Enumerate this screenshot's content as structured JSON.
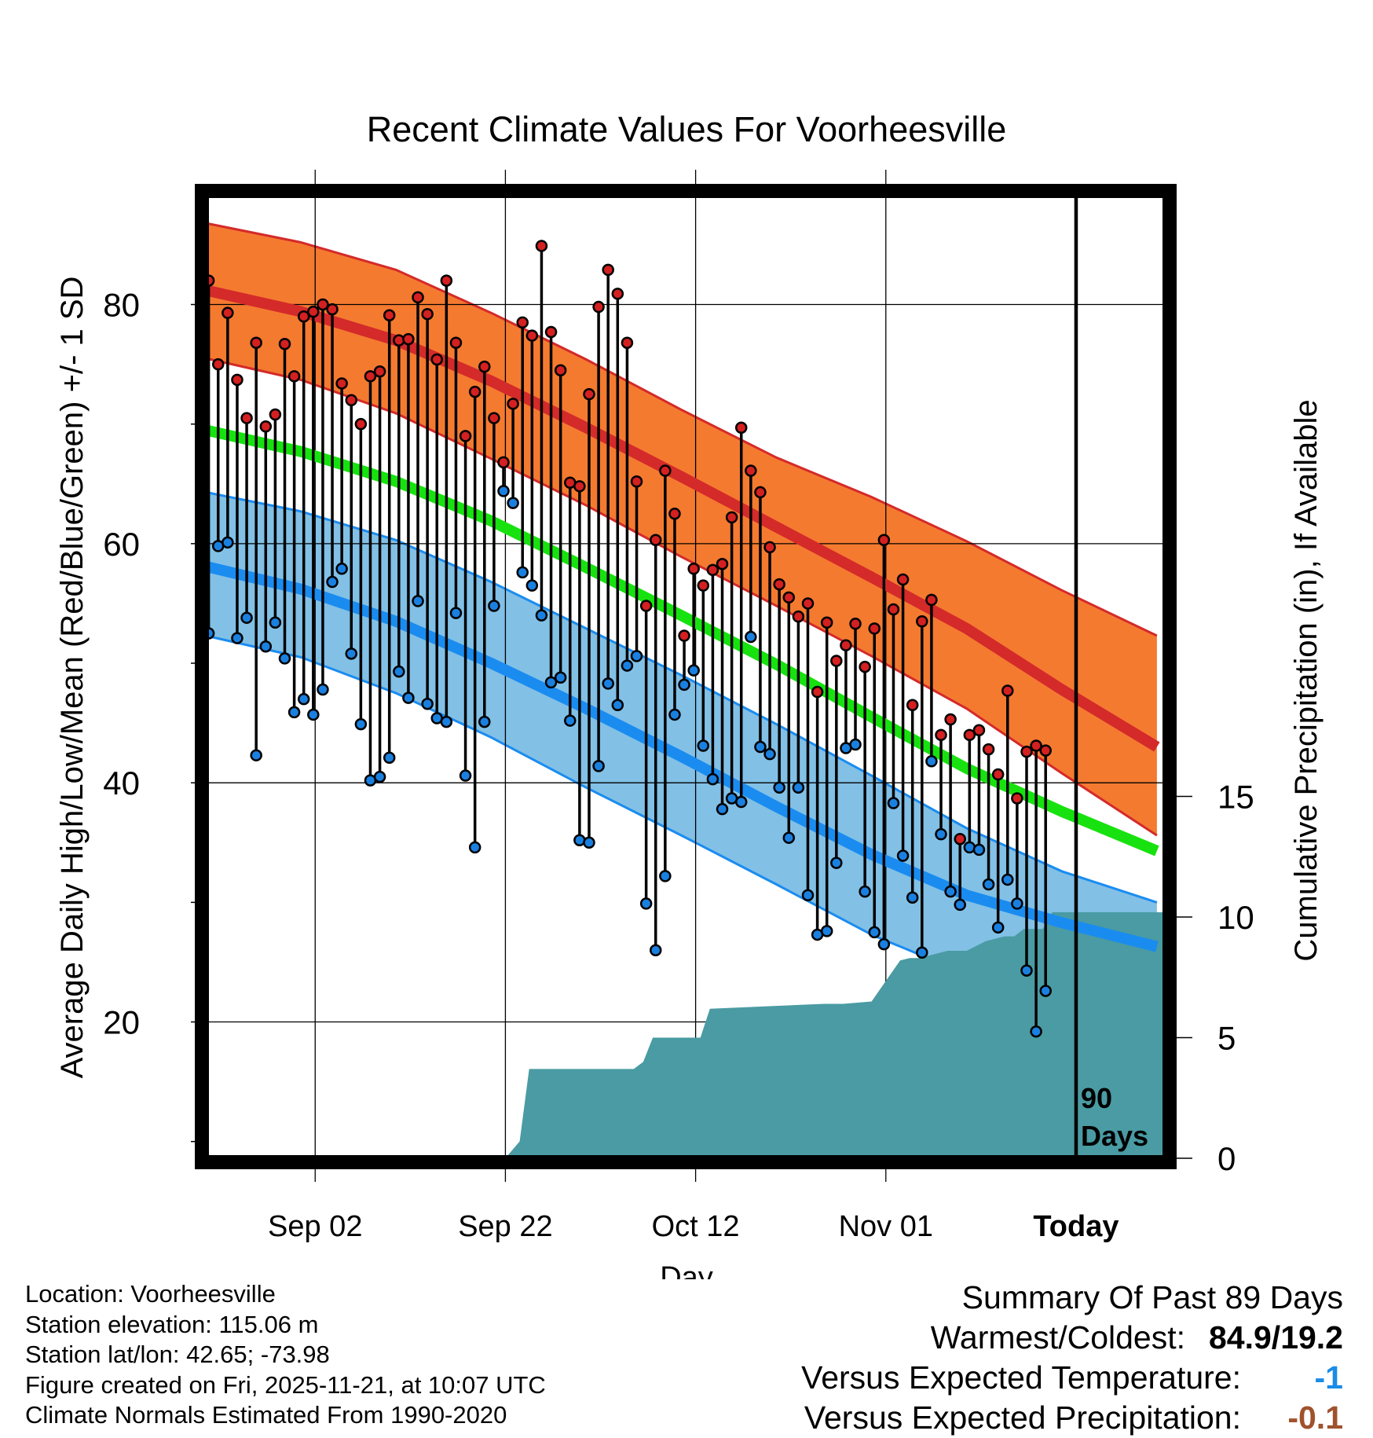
{
  "chart_data": {
    "type": "line",
    "title": "Recent Climate Values For Voorheesville",
    "xlabel": "Day",
    "ylabel": "Average Daily High/Low/Mean (Red/Blue/Green) +/- 1 SD",
    "y2label": "Cumulative Precipitation (in), If Available",
    "ylim": [
      8.6,
      89.3
    ],
    "y2lim": [
      0,
      40
    ],
    "yticks": [
      "20",
      "40",
      "60",
      "80"
    ],
    "y2ticks": [
      "0",
      "5",
      "10",
      "15"
    ],
    "xtick_labels": [
      "Sep 02",
      "Sep 22",
      "Oct 12",
      "Nov 01",
      "Today"
    ],
    "xtick_days": [
      11.5,
      31.5,
      51.5,
      71.5,
      91.5
    ],
    "xlim": [
      0,
      101
    ],
    "today_label": "90\nDays",
    "colors": {
      "high_band": "#f47a30",
      "high_line": "#d42a2a",
      "mean_line": "#17e20f",
      "low_band": "#82c0e6",
      "low_line": "#1a8cf0",
      "precip": "#4a9ba3",
      "high_dot": "#d42020",
      "low_dot": "#1a80e0"
    },
    "normals": {
      "days": [
        0,
        10,
        20,
        30,
        40,
        50,
        60,
        70,
        80,
        90,
        100
      ],
      "high_upper": [
        86.8,
        85.2,
        82.9,
        79.3,
        75.4,
        71.2,
        67.2,
        63.9,
        60.2,
        56.1,
        52.3
      ],
      "high": [
        81.2,
        79.4,
        77.0,
        73.6,
        69.7,
        65.6,
        61.4,
        57.2,
        52.9,
        47.8,
        43.0
      ],
      "high_lower": [
        75.5,
        73.7,
        70.9,
        67.1,
        63.2,
        58.9,
        54.8,
        50.6,
        46.2,
        40.8,
        35.6
      ],
      "mean": [
        69.5,
        67.7,
        65.2,
        61.9,
        58.0,
        54.0,
        49.9,
        45.5,
        41.2,
        37.6,
        34.3
      ],
      "low_upper": [
        64.3,
        62.7,
        60.3,
        56.8,
        52.9,
        49.0,
        44.9,
        40.6,
        36.2,
        32.6,
        30.0
      ],
      "low": [
        58.1,
        56.2,
        53.5,
        50.0,
        46.2,
        42.2,
        38.0,
        34.0,
        30.6,
        28.3,
        26.3
      ],
      "low_lower": [
        52.3,
        50.5,
        47.5,
        43.8,
        39.6,
        35.6,
        31.5,
        27.3,
        24.0,
        21.6,
        20.0
      ]
    },
    "series": [
      {
        "name": "Daily High",
        "start_day": 0.3,
        "values": [
          82,
          75,
          79.3,
          73.7,
          70.5,
          76.8,
          69.8,
          70.8,
          76.7,
          74,
          79,
          79.4,
          80,
          79.6,
          73.4,
          72,
          70,
          74,
          74.4,
          79.1,
          77,
          77.1,
          80.6,
          79.2,
          75.4,
          82,
          76.8,
          69,
          72.7,
          74.8,
          70.5,
          66.8,
          71.7,
          78.5,
          77.4,
          84.9,
          77.7,
          74.5,
          65.1,
          64.8,
          72.5,
          79.8,
          82.9,
          80.9,
          76.8,
          65.2,
          54.8,
          60.3,
          66.1,
          62.5,
          52.3,
          57.9,
          56.5,
          57.8,
          58.3,
          62.2,
          69.7,
          66.1,
          64.3,
          59.7,
          56.6,
          55.5,
          53.9,
          55,
          47.6,
          53.4,
          50.2,
          51.5,
          53.3,
          49.7,
          52.9,
          60.3,
          54.5,
          57,
          46.5,
          53.5,
          55.3,
          44,
          45.3,
          35.3,
          44,
          44.4,
          42.8,
          40.7,
          47.7,
          38.7,
          42.6,
          43.1,
          42.7
        ]
      },
      {
        "name": "Daily Low",
        "start_day": 0.3,
        "values": [
          52.5,
          59.8,
          60.1,
          52.1,
          53.8,
          42.3,
          51.4,
          53.4,
          50.4,
          45.9,
          47,
          45.7,
          47.8,
          56.8,
          57.9,
          50.8,
          44.9,
          40.2,
          40.5,
          42.1,
          49.3,
          47.1,
          55.2,
          46.6,
          45.4,
          45.1,
          54.2,
          40.6,
          34.6,
          45.1,
          54.8,
          64.4,
          63.4,
          57.6,
          56.5,
          54,
          48.4,
          48.8,
          45.2,
          35.2,
          35,
          41.4,
          48.3,
          46.5,
          49.8,
          50.6,
          29.9,
          26,
          32.2,
          45.7,
          48.2,
          49.4,
          43.1,
          40.3,
          37.8,
          38.7,
          38.4,
          52.2,
          43,
          42.4,
          39.6,
          35.4,
          39.6,
          30.6,
          27.3,
          27.6,
          33.3,
          42.9,
          43.2,
          30.9,
          27.5,
          26.5,
          38.3,
          33.9,
          30.4,
          25.8,
          41.8,
          35.7,
          30.9,
          29.8,
          34.6,
          34.4,
          31.5,
          27.9,
          31.9,
          29.9,
          24.3,
          19.2,
          22.6
        ]
      }
    ],
    "precip_cumulative": {
      "days": [
        31.5,
        33,
        34,
        35,
        45,
        46,
        47,
        51,
        52,
        53,
        65,
        67,
        70,
        73,
        74,
        75,
        78,
        80,
        82,
        84,
        85,
        86,
        88,
        89,
        90,
        101
      ],
      "values": [
        0,
        0.7,
        3.7,
        3.7,
        3.7,
        4.0,
        5.0,
        5.0,
        5.0,
        6.2,
        6.4,
        6.4,
        6.5,
        8.2,
        8.3,
        8.3,
        8.6,
        8.6,
        9.0,
        9.2,
        9.2,
        9.5,
        9.5,
        10.2,
        10.2,
        10.2
      ]
    }
  },
  "footer": {
    "location": "Location: Voorheesville",
    "elevation": "Station elevation: 115.06 m",
    "latlon": "Station lat/lon: 42.65; -73.98",
    "created": "Figure created on Fri, 2025-11-21, at 10:07 UTC",
    "normals": "Climate Normals Estimated From 1990-2020"
  },
  "summary": {
    "title": "Summary Of Past 89 Days",
    "warmest_coldest_label": "Warmest/Coldest:",
    "warmest_coldest_value": "84.9/19.2",
    "temp_label": "Versus Expected Temperature:",
    "temp_value": "-1",
    "temp_color": "#1a8ce6",
    "precip_label": "Versus Expected Precipitation:",
    "precip_value": "-0.1",
    "precip_color": "#a0522d"
  }
}
